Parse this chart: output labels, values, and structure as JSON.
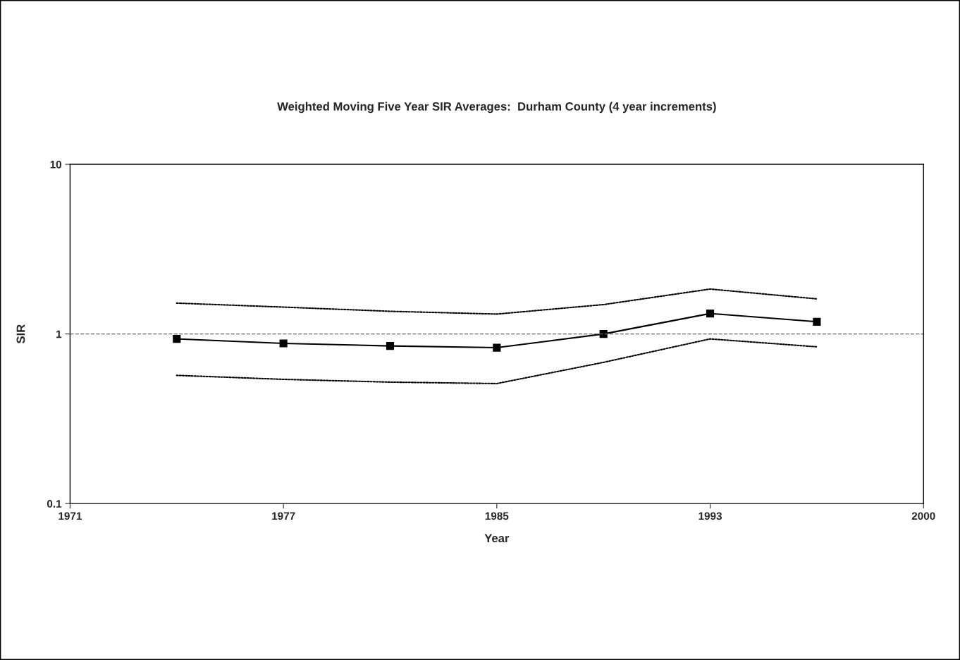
{
  "chart_data": {
    "type": "line",
    "title": "Weighted Moving Five Year SIR Averages:  Durham County (4 year increments)",
    "xlabel": "Year",
    "ylabel": "SIR",
    "log": "y",
    "categories": [
      "1971",
      null,
      "1977",
      null,
      "1985",
      null,
      "1993",
      null,
      "2000"
    ],
    "ylim": [
      0.1,
      10
    ],
    "yticks": [
      0.1,
      1,
      10
    ],
    "grid": false,
    "series": [
      {
        "color": "#000000",
        "marker": "square",
        "line_style": "solid",
        "values": [
          null,
          0.935,
          0.88,
          0.85,
          0.83,
          1.0,
          1.32,
          1.18,
          null
        ]
      },
      {
        "color": "#000000",
        "marker": "none",
        "line_style": "dotted",
        "values": [
          null,
          1.52,
          1.44,
          1.36,
          1.31,
          1.49,
          1.84,
          1.61,
          null
        ]
      },
      {
        "color": "#000000",
        "marker": "none",
        "line_style": "dotted",
        "values": [
          null,
          0.57,
          0.54,
          0.52,
          0.51,
          0.68,
          0.935,
          0.84,
          null
        ]
      }
    ],
    "ref_lines": [
      {
        "axis": "y",
        "value": 1,
        "color": "#666666",
        "line_style": "dashed"
      }
    ]
  }
}
